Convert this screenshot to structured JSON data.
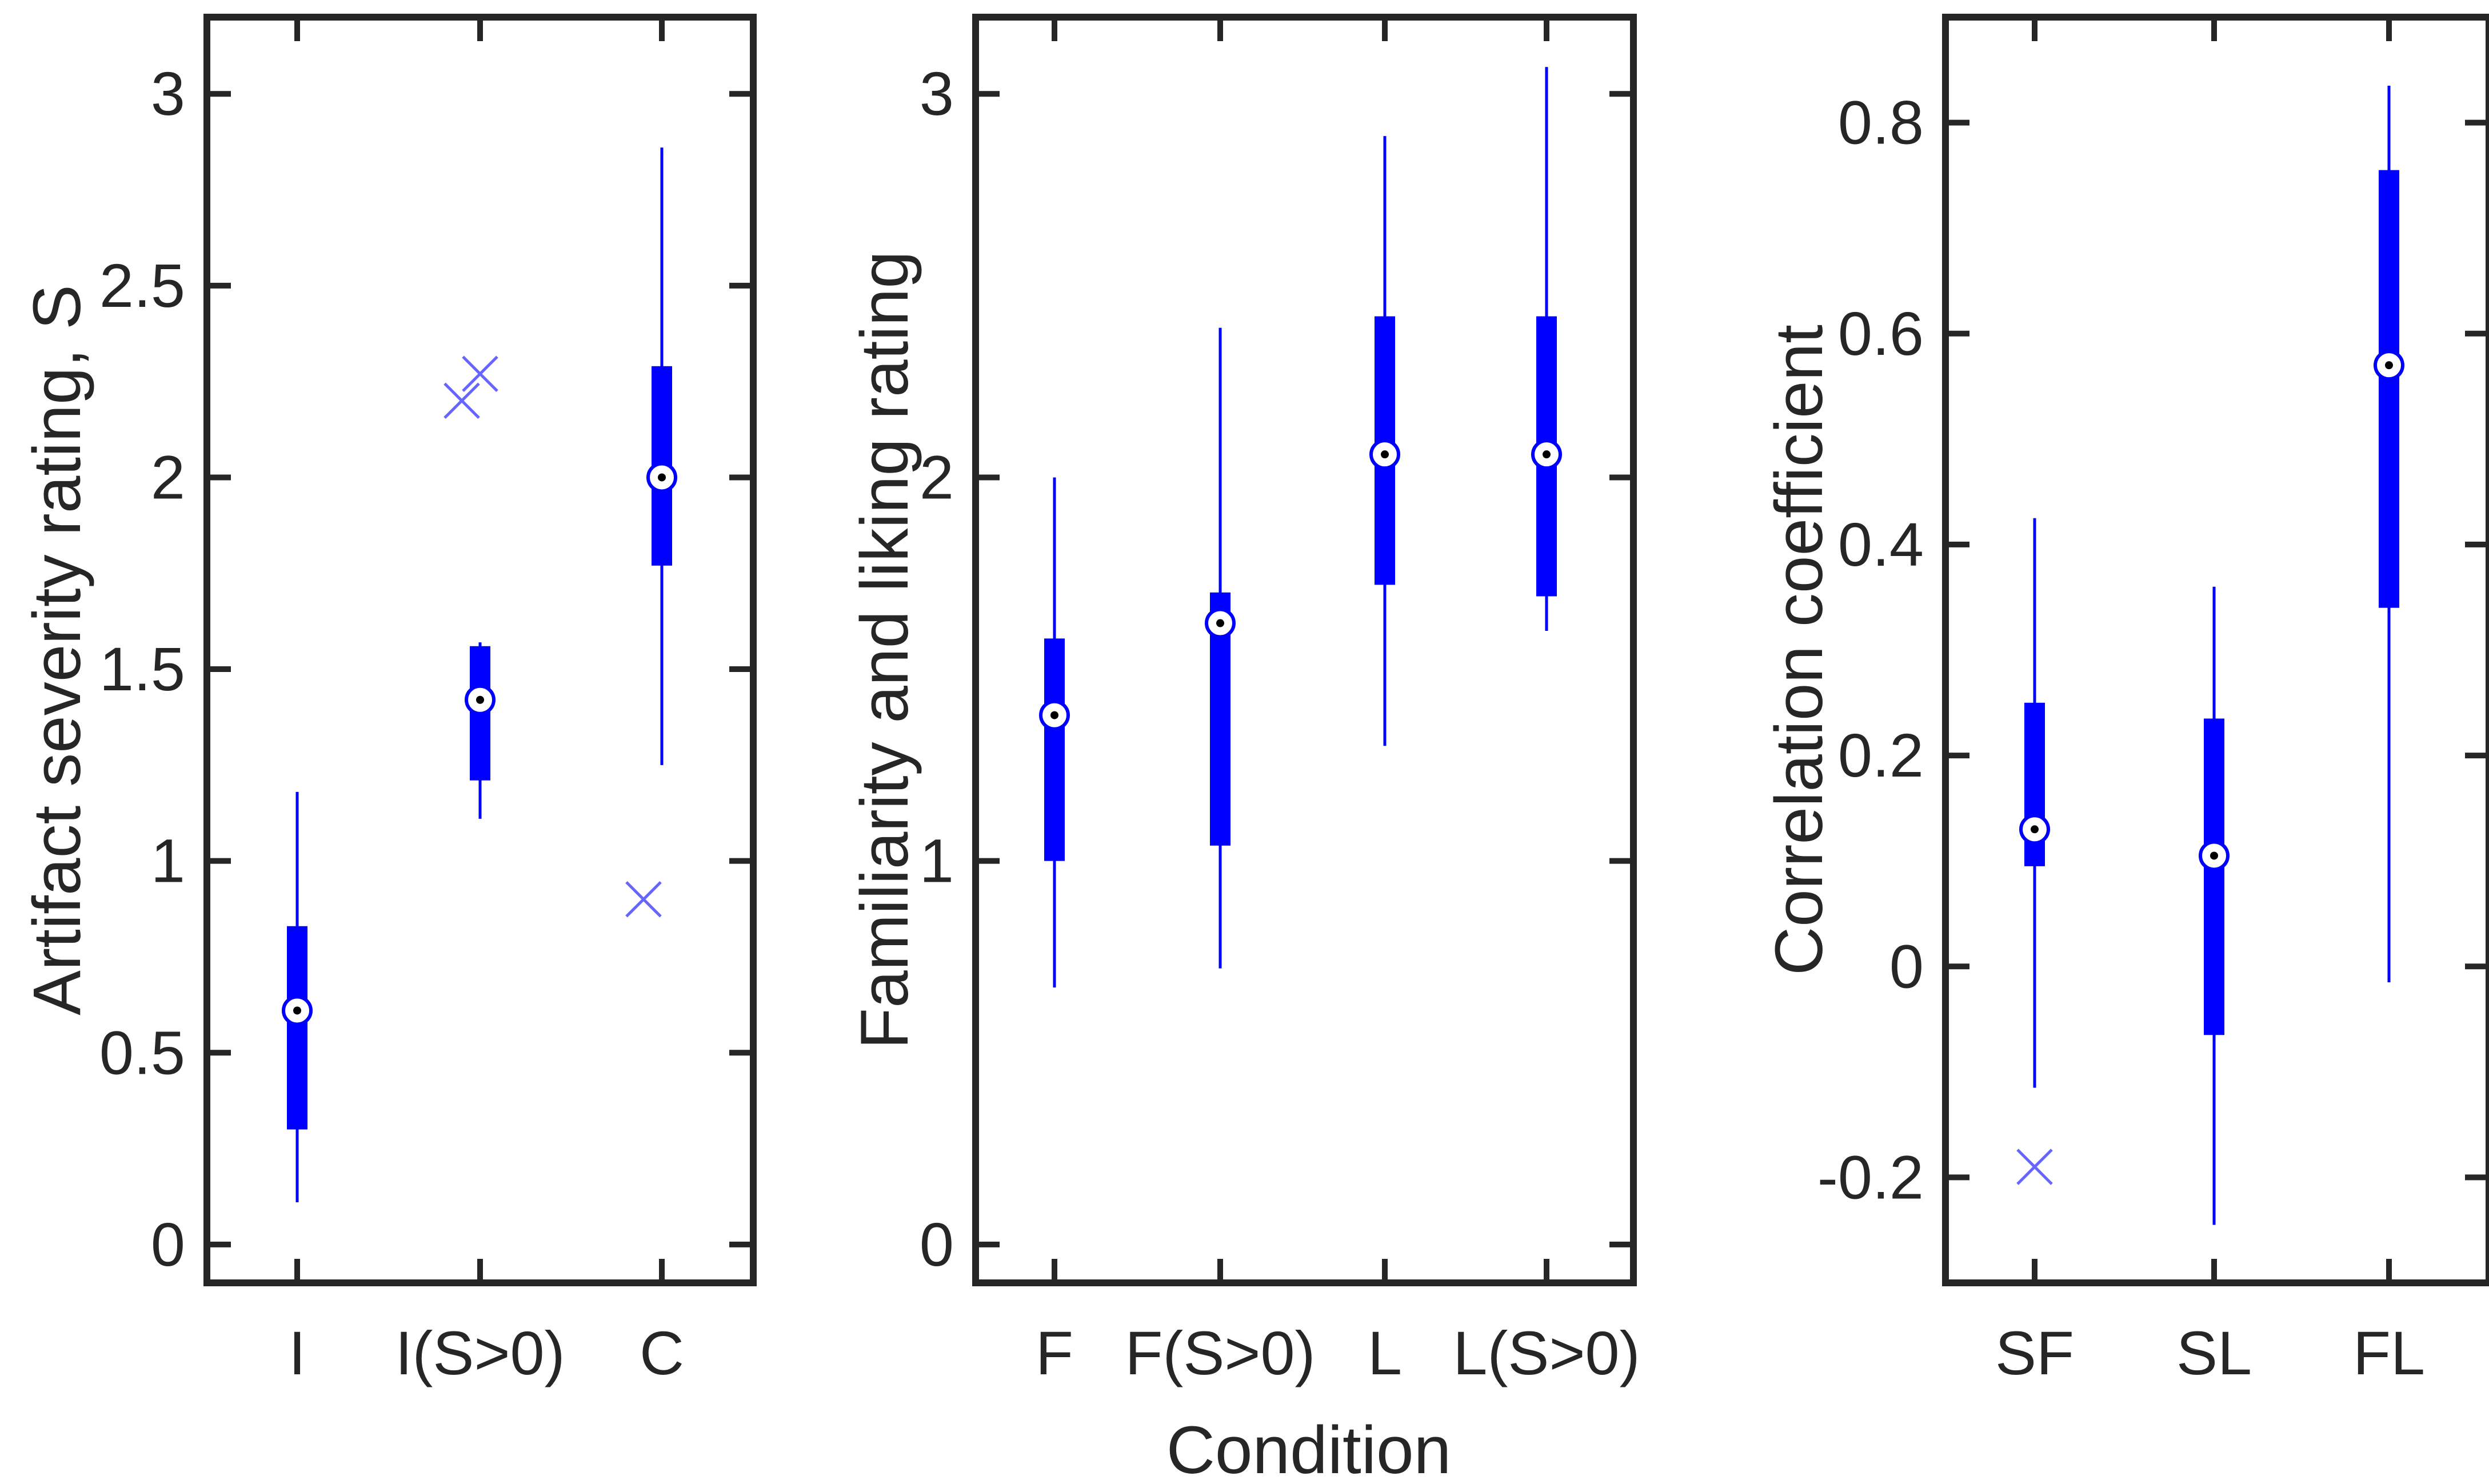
{
  "xlabel": "Condition",
  "colors": {
    "box": "#0000ff",
    "axes": "#262626",
    "outlier": "#6666ff",
    "median_marker_fill": "#ffffff"
  },
  "chart_data": [
    {
      "type": "boxplot",
      "ylabel": "Artifact severity rating, S",
      "ylim": [
        -0.1,
        3.2
      ],
      "yticks": [
        "0",
        "0.5",
        "1",
        "1.5",
        "2",
        "2.5",
        "3"
      ],
      "categories": [
        "I",
        "I(S>0)",
        "C"
      ],
      "boxes": [
        {
          "category": "I",
          "whisker_low": 0.11,
          "q1": 0.3,
          "median": 0.61,
          "q3": 0.83,
          "whisker_high": 1.18
        },
        {
          "category": "I(S>0)",
          "whisker_low": 1.11,
          "q1": 1.21,
          "median": 1.42,
          "q3": 1.56,
          "whisker_high": 1.57
        },
        {
          "category": "C",
          "whisker_low": 1.25,
          "q1": 1.77,
          "median": 2.0,
          "q3": 2.29,
          "whisker_high": 2.86
        }
      ],
      "outliers": [
        {
          "category": "I(S>0)",
          "value": 2.2,
          "offset": -0.1
        },
        {
          "category": "I(S>0)",
          "value": 2.27,
          "offset": 0.0
        },
        {
          "category": "C",
          "value": 0.9,
          "offset": -0.1
        }
      ]
    },
    {
      "type": "boxplot",
      "ylabel": "Familiarity and liking rating",
      "ylim": [
        -0.1,
        3.2
      ],
      "yticks": [
        "0",
        "1",
        "2",
        "3"
      ],
      "categories": [
        "F",
        "F(S>0)",
        "L",
        "L(S>0)"
      ],
      "boxes": [
        {
          "category": "F",
          "whisker_low": 0.67,
          "q1": 1.0,
          "median": 1.38,
          "q3": 1.58,
          "whisker_high": 2.0
        },
        {
          "category": "F(S>0)",
          "whisker_low": 0.72,
          "q1": 1.04,
          "median": 1.62,
          "q3": 1.7,
          "whisker_high": 2.39
        },
        {
          "category": "L",
          "whisker_low": 1.3,
          "q1": 1.72,
          "median": 2.06,
          "q3": 2.42,
          "whisker_high": 2.89
        },
        {
          "category": "L(S>0)",
          "whisker_low": 1.6,
          "q1": 1.69,
          "median": 2.06,
          "q3": 2.42,
          "whisker_high": 3.07
        }
      ],
      "outliers": []
    },
    {
      "type": "boxplot",
      "ylabel": "Correlation coefficient",
      "ylim": [
        -0.3,
        0.9
      ],
      "yticks": [
        "-0.2",
        "0",
        "0.2",
        "0.4",
        "0.6",
        "0.8"
      ],
      "categories": [
        "SF",
        "SL",
        "FL"
      ],
      "boxes": [
        {
          "category": "SF",
          "whisker_low": -0.115,
          "q1": 0.095,
          "median": 0.13,
          "q3": 0.25,
          "whisker_high": 0.425
        },
        {
          "category": "SL",
          "whisker_low": -0.245,
          "q1": -0.065,
          "median": 0.105,
          "q3": 0.235,
          "whisker_high": 0.36
        },
        {
          "category": "FL",
          "whisker_low": -0.015,
          "q1": 0.34,
          "median": 0.57,
          "q3": 0.755,
          "whisker_high": 0.835
        }
      ],
      "outliers": [
        {
          "category": "SF",
          "value": -0.19,
          "offset": 0.0
        }
      ]
    }
  ]
}
